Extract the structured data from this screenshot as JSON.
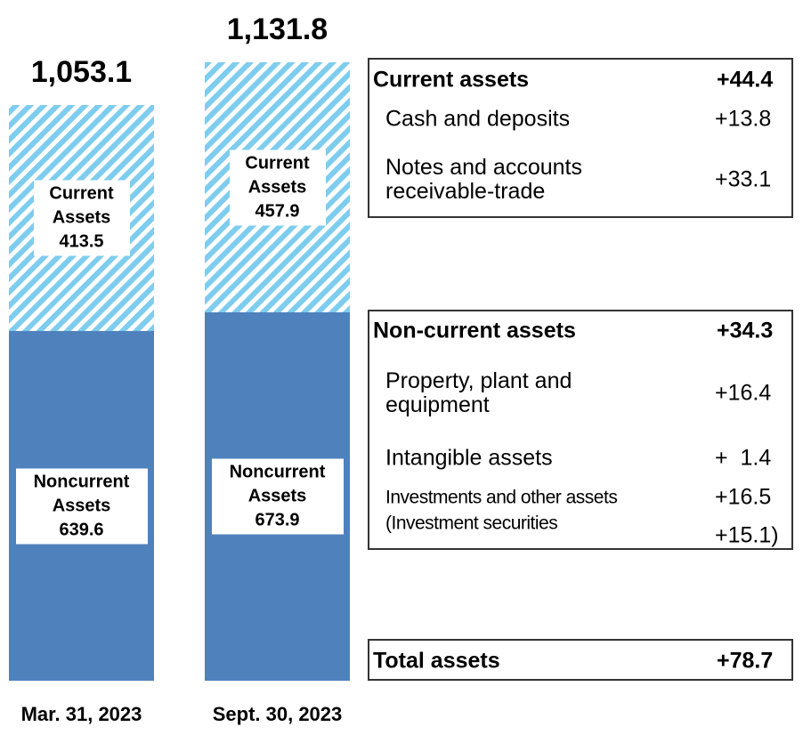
{
  "chart_data": {
    "type": "stacked_bar",
    "categories": [
      "Mar. 31, 2023",
      "Sept. 30, 2023"
    ],
    "series": [
      {
        "name": "Noncurrent Assets",
        "color": "#4f81bd",
        "values": [
          639.6,
          673.9
        ]
      },
      {
        "name": "Current Assets",
        "color": "#7fcdee",
        "pattern": "hatch",
        "values": [
          413.5,
          457.9
        ]
      }
    ],
    "totals": {
      "values": [
        1053.1,
        1131.8
      ],
      "value_labels": [
        "1,053.1",
        "1,131.8"
      ]
    }
  },
  "tables": [
    {
      "rows": [
        {
          "label": "Current assets",
          "change": "+44.4",
          "bold": true
        },
        {
          "label": "Cash and deposits",
          "change": "+13.8"
        },
        {
          "label": "Notes and accounts receivable-trade",
          "change": "+33.1"
        }
      ]
    },
    {
      "rows": [
        {
          "label": "Non-current assets",
          "change": "+34.3",
          "bold": true
        },
        {
          "label": "Property, plant and equipment",
          "change": "+16.4"
        },
        {
          "label": "Intangible assets",
          "change": "+  1.4"
        },
        {
          "label": "Investments and other assets",
          "change": "+16.5",
          "small": true
        },
        {
          "label": "(Investment securities",
          "change": "+15.1)",
          "small": true
        }
      ]
    },
    {
      "rows": [
        {
          "label": "Total assets",
          "change": "+78.7",
          "bold": true
        }
      ]
    }
  ]
}
